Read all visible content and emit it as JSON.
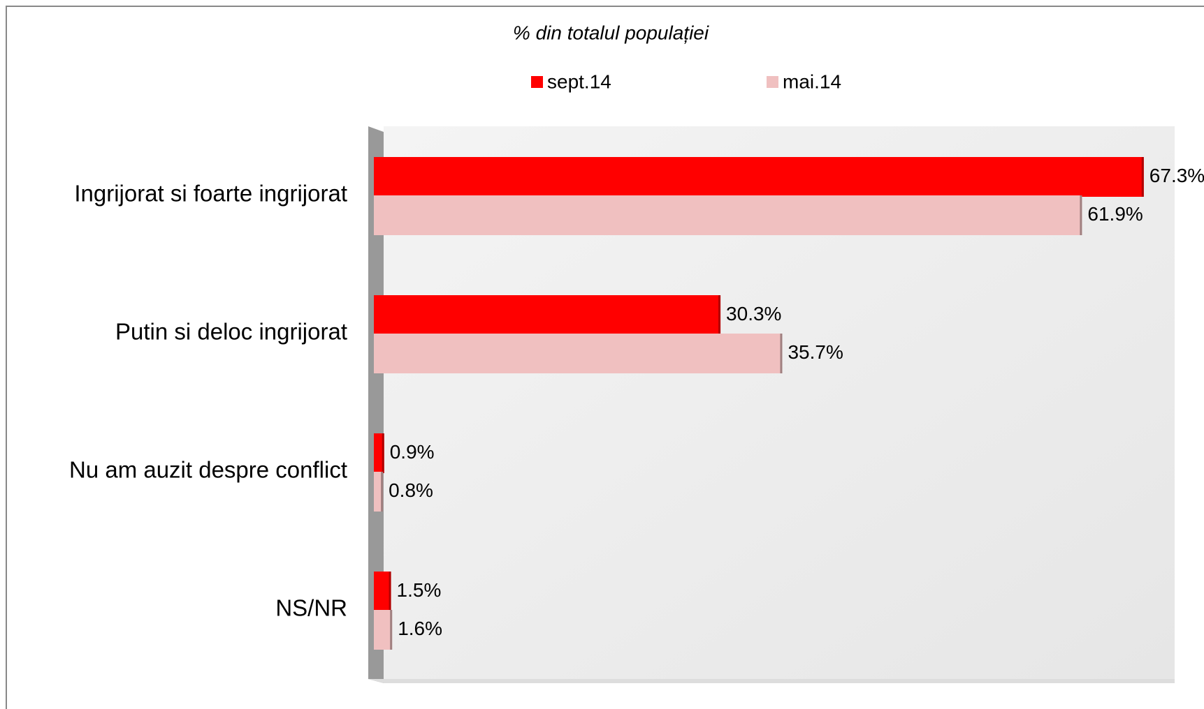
{
  "chart_data": {
    "type": "bar",
    "orientation": "horizontal",
    "title": "% din totalul populației",
    "categories": [
      "Ingrijorat si foarte ingrijorat",
      "Putin si deloc ingrijorat",
      "Nu am auzit despre conflict",
      "NS/NR"
    ],
    "series": [
      {
        "name": "sept.14",
        "color": "#ff0000",
        "values": [
          67.3,
          30.3,
          0.9,
          1.5
        ],
        "value_labels": [
          "67.3%",
          "30.3%",
          "0.9%",
          "1.5%"
        ]
      },
      {
        "name": "mai.14",
        "color": "#f0c0c0",
        "values": [
          61.9,
          35.7,
          0.8,
          1.6
        ],
        "value_labels": [
          "61.9%",
          "35.7%",
          "0.8%",
          "1.6%"
        ]
      }
    ],
    "xlim": [
      0,
      70
    ]
  }
}
